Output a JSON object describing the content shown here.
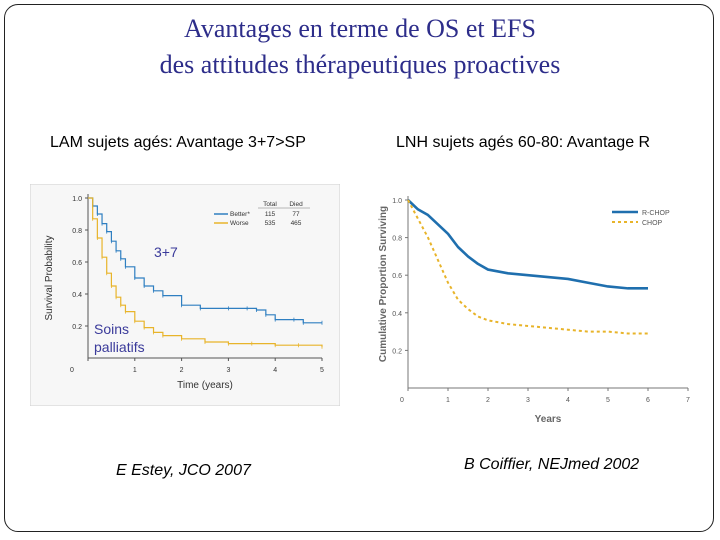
{
  "slide": {
    "title_line1": "Avantages en terme de OS et EFS",
    "title_line2": "des attitudes thérapeutiques proactives",
    "left_subtitle": "LAM sujets agés: Avantage 3+7>SP",
    "right_subtitle": "LNH sujets agés 60-80: Avantage R",
    "left_citation": "E Estey, JCO 2007",
    "right_citation": "B Coiffier, NEJmed 2002",
    "label_37": "3+7",
    "label_soins_1": "Soins",
    "label_soins_2": "palliatifs"
  },
  "colors": {
    "title": "#2d2d8a",
    "blue_series": "#2f7fc1",
    "gold_series": "#e8b42a",
    "rchop_series": "#1f6fae",
    "chop_series": "#e8b42a",
    "axis": "#555555"
  },
  "chart_data": [
    {
      "type": "line",
      "title": "",
      "xlabel": "Time (years)",
      "ylabel": "Survival Probability",
      "xlim": [
        0,
        5
      ],
      "ylim": [
        0,
        1.0
      ],
      "x_ticks": [
        "0",
        "1",
        "2",
        "3",
        "4",
        "5"
      ],
      "y_ticks": [
        "0.2",
        "0.4",
        "0.6",
        "0.8",
        "1.0"
      ],
      "legend_header": [
        "Total",
        "Died"
      ],
      "legend_position": "top-right",
      "series": [
        {
          "name": "Better*",
          "total": "115",
          "died": "77",
          "x": [
            0,
            0.1,
            0.2,
            0.3,
            0.4,
            0.5,
            0.6,
            0.7,
            0.8,
            1.0,
            1.2,
            1.4,
            1.6,
            2.0,
            2.4,
            3.0,
            3.4,
            3.6,
            3.8,
            4.0,
            4.4,
            4.6,
            5.0
          ],
          "values": [
            1.0,
            0.95,
            0.9,
            0.84,
            0.79,
            0.73,
            0.67,
            0.62,
            0.57,
            0.5,
            0.45,
            0.42,
            0.39,
            0.33,
            0.31,
            0.31,
            0.31,
            0.3,
            0.27,
            0.24,
            0.24,
            0.22,
            0.22
          ]
        },
        {
          "name": "Worse",
          "total": "535",
          "died": "465",
          "x": [
            0,
            0.1,
            0.2,
            0.3,
            0.4,
            0.5,
            0.6,
            0.7,
            0.8,
            1.0,
            1.2,
            1.4,
            1.6,
            2.0,
            2.5,
            3.0,
            3.5,
            4.0,
            4.5,
            5.0
          ],
          "values": [
            1.0,
            0.87,
            0.75,
            0.63,
            0.53,
            0.45,
            0.38,
            0.33,
            0.29,
            0.23,
            0.19,
            0.16,
            0.14,
            0.12,
            0.1,
            0.09,
            0.09,
            0.08,
            0.08,
            0.07
          ]
        }
      ]
    },
    {
      "type": "line",
      "title": "",
      "xlabel": "Years",
      "ylabel": "Cumulative Proportion Surviving",
      "xlim": [
        0,
        7
      ],
      "ylim": [
        0,
        1.0
      ],
      "x_ticks": [
        "0",
        "1",
        "2",
        "3",
        "4",
        "5",
        "6",
        "7"
      ],
      "y_ticks": [
        "0.2",
        "0.4",
        "0.6",
        "0.8",
        "1.0"
      ],
      "legend_position": "top-right",
      "series": [
        {
          "name": "R-CHOP",
          "x": [
            0,
            0.25,
            0.5,
            0.75,
            1.0,
            1.25,
            1.5,
            1.75,
            2.0,
            2.5,
            3.0,
            3.5,
            4.0,
            4.5,
            5.0,
            5.5,
            6.0
          ],
          "values": [
            1.0,
            0.95,
            0.92,
            0.87,
            0.82,
            0.75,
            0.7,
            0.66,
            0.63,
            0.61,
            0.6,
            0.59,
            0.58,
            0.56,
            0.54,
            0.53,
            0.53
          ]
        },
        {
          "name": "CHOP",
          "x": [
            0,
            0.25,
            0.5,
            0.75,
            1.0,
            1.25,
            1.5,
            1.75,
            2.0,
            2.5,
            3.0,
            3.5,
            4.0,
            4.5,
            5.0,
            5.5,
            6.0
          ],
          "values": [
            1.0,
            0.9,
            0.8,
            0.68,
            0.56,
            0.47,
            0.42,
            0.38,
            0.36,
            0.34,
            0.33,
            0.32,
            0.31,
            0.3,
            0.3,
            0.29,
            0.29
          ]
        }
      ]
    }
  ]
}
